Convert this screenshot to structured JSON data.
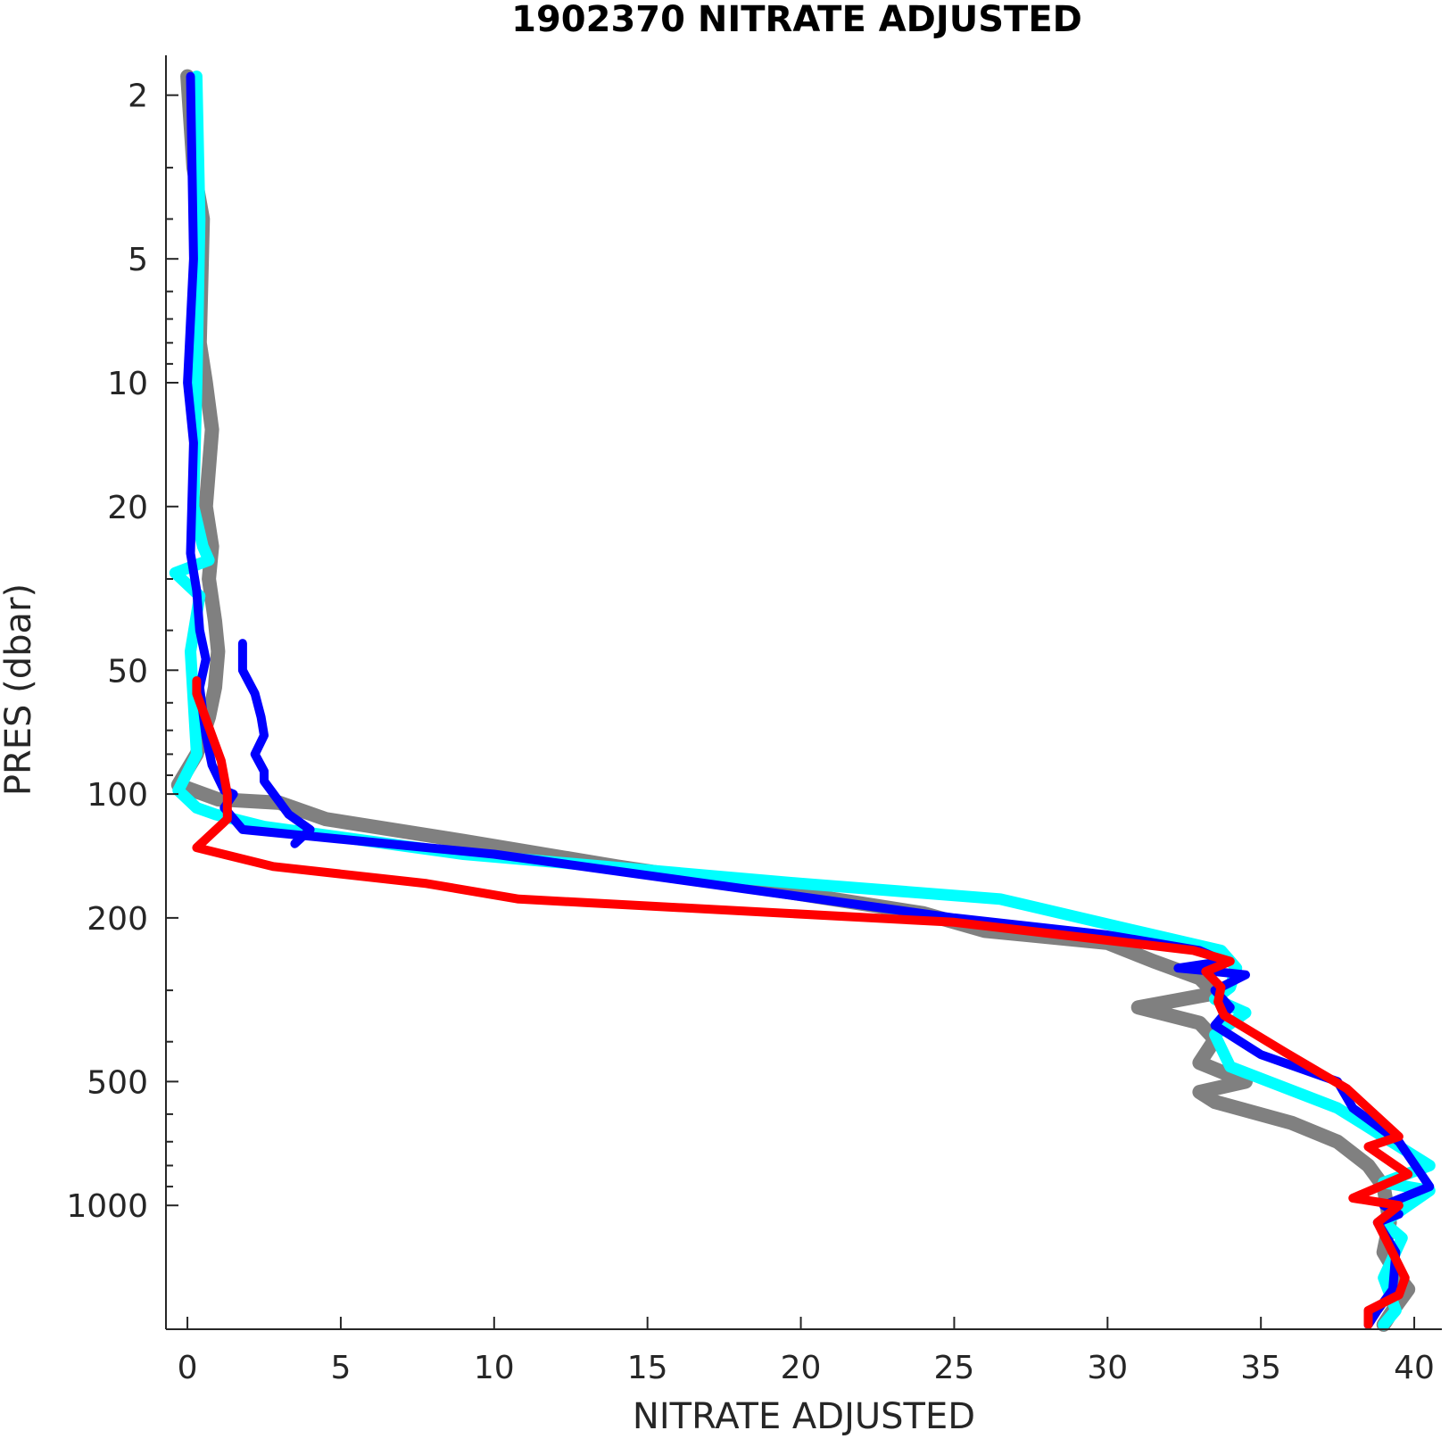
{
  "chart_data": {
    "type": "line",
    "title": "1902370  NITRATE ADJUSTED",
    "xlabel": "NITRATE ADJUSTED",
    "ylabel": "PRES (dbar)",
    "xlim": [
      -0.7,
      40.9
    ],
    "ylim": [
      1.6,
      2000
    ],
    "y_scale": "log",
    "y_reversed": true,
    "grid": false,
    "x_ticks": [
      0,
      5,
      10,
      15,
      20,
      25,
      30,
      35,
      40
    ],
    "x_tick_labels": [
      "0",
      "5",
      "10",
      "15",
      "20",
      "25",
      "30",
      "35",
      "40"
    ],
    "y_ticks": [
      2,
      5,
      10,
      20,
      50,
      100,
      200,
      500,
      1000
    ],
    "y_tick_labels": [
      "2",
      "5",
      "10",
      "20",
      "50",
      "100",
      "200",
      "500",
      "1000"
    ],
    "y_minor_ticks": [
      3,
      4,
      6,
      7,
      8,
      9,
      30,
      40,
      60,
      70,
      80,
      90,
      300,
      400,
      600,
      700,
      800,
      900
    ],
    "series": [
      {
        "color": "#808080",
        "width": 16,
        "x": [
          0.0,
          0.2,
          0.5,
          0.4,
          0.6,
          0.8,
          0.6,
          0.8,
          0.7,
          0.9,
          1.0,
          0.9,
          0.7,
          0.3,
          -0.3,
          1.0,
          3.0,
          4.5,
          9.0,
          14.0,
          20.0,
          24.0,
          26.0,
          30.0,
          31.5,
          33.0,
          33.5,
          31.0,
          33.0,
          33.5,
          33.0,
          34.5,
          33.0,
          33.5,
          36.0,
          37.5,
          38.5,
          39.0,
          39.2,
          39.0,
          39.5,
          39.8,
          39.3,
          39.0
        ],
        "y": [
          1.8,
          3,
          4,
          8,
          10,
          13,
          20,
          25,
          30,
          38,
          45,
          55,
          65,
          80,
          95,
          103,
          105,
          115,
          130,
          150,
          175,
          195,
          215,
          230,
          255,
          280,
          305,
          330,
          360,
          395,
          450,
          500,
          530,
          560,
          630,
          700,
          800,
          900,
          1100,
          1300,
          1500,
          1600,
          1800,
          1950
        ]
      },
      {
        "color": "#00ffff",
        "width": 13,
        "x": [
          0.3,
          0.4,
          0.3,
          0.2,
          0.5,
          0.7,
          -0.4,
          0.4,
          0.1,
          0.3,
          -0.3,
          0.3,
          0.9,
          2.5,
          9.0,
          20.0,
          26.5,
          31.5,
          33.7,
          34.2,
          34.0,
          33.5,
          34.5,
          33.5,
          34.0,
          37.5,
          40.5,
          39.0,
          40.5,
          39.0,
          39.6,
          39.0,
          39.4,
          39.0
        ],
        "y": [
          1.8,
          4,
          10,
          20,
          25,
          27,
          29,
          33,
          45,
          80,
          98,
          108,
          112,
          120,
          140,
          165,
          180,
          220,
          240,
          265,
          295,
          315,
          340,
          385,
          460,
          580,
          800,
          880,
          920,
          1100,
          1200,
          1500,
          1800,
          1950
        ]
      },
      {
        "color": "#0000ff",
        "width": 10,
        "x": [
          0.1,
          0.2,
          0.0,
          0.2,
          0.1,
          0.3,
          0.4,
          0.6,
          0.4,
          0.6,
          0.8,
          1.2,
          1.5,
          1.2,
          1.8,
          10.0,
          25.0,
          30.0,
          33.0,
          33.8,
          32.3,
          33.5,
          34.5,
          33.5,
          34.0,
          33.5,
          35.0,
          37.5,
          38.0,
          39.5,
          40.5,
          39.0,
          39.5,
          38.8,
          39.4,
          39.3,
          38.8,
          38.5
        ],
        "y": [
          1.8,
          5,
          10,
          14,
          26,
          32,
          40,
          47,
          55,
          72,
          85,
          98,
          100,
          108,
          122,
          140,
          200,
          220,
          240,
          255,
          265,
          270,
          275,
          300,
          330,
          365,
          430,
          500,
          580,
          700,
          900,
          1000,
          1050,
          1100,
          1300,
          1600,
          1800,
          1950
        ]
      },
      {
        "color": "#0000ff",
        "width": 10,
        "x": [
          1.8,
          1.8,
          2.2,
          2.4,
          2.5,
          2.2,
          2.5,
          2.5,
          3.3,
          4.0,
          3.5
        ],
        "y": [
          43,
          50,
          57,
          65,
          72,
          80,
          88,
          93,
          112,
          122,
          132
        ]
      },
      {
        "color": "#ff0000",
        "width": 10,
        "x": [
          0.3,
          0.3,
          1.1,
          1.3,
          1.3,
          0.3,
          2.8,
          7.8,
          10.8,
          25.0,
          32.8,
          34.0,
          33.2,
          33.7,
          33.6,
          33.8,
          35.8,
          37.8,
          39.5,
          38.5,
          39.8,
          38.0,
          39.5,
          38.8,
          39.7,
          39.5,
          38.5,
          38.5
        ],
        "y": [
          53,
          57,
          83,
          100,
          115,
          135,
          150,
          165,
          180,
          205,
          240,
          255,
          270,
          295,
          320,
          345,
          425,
          520,
          680,
          720,
          840,
          960,
          1000,
          1100,
          1500,
          1650,
          1800,
          1950
        ]
      }
    ]
  }
}
